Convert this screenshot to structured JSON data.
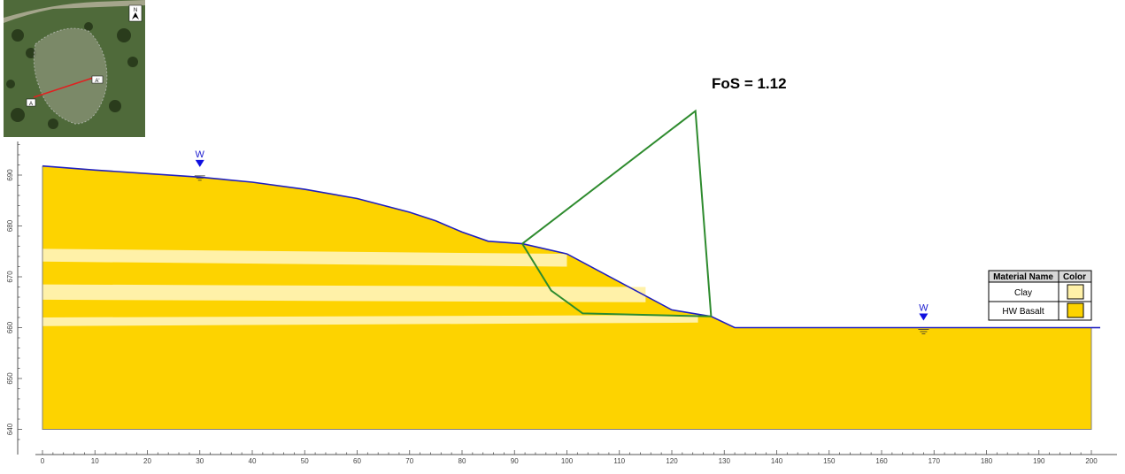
{
  "annotation": {
    "fos_label": "FoS = 1.12"
  },
  "water_markers": [
    {
      "label": "W",
      "x": 30,
      "y": 690.2
    },
    {
      "label": "W",
      "x": 168,
      "y": 660
    }
  ],
  "legend": {
    "headers": [
      "Material Name",
      "Color"
    ],
    "rows": [
      {
        "name": "Clay",
        "color": "#fff1a8"
      },
      {
        "name": "HW Basalt",
        "color": "#fdd300"
      }
    ]
  },
  "inset_map": {
    "labels": [
      "A",
      "A'"
    ],
    "north_label": "N"
  },
  "colors": {
    "basalt": "#fdd300",
    "clay": "#fff1a8",
    "ground_line": "#1f1fbf",
    "slip_surface": "#2e8b2e",
    "water": "#1010e0"
  },
  "chart_data": {
    "type": "diagram",
    "x_axis": {
      "ticks": [
        0,
        10,
        20,
        30,
        40,
        50,
        60,
        70,
        80,
        90,
        100,
        110,
        120,
        130,
        140,
        150,
        160,
        170,
        180,
        190,
        200
      ]
    },
    "y_axis": {
      "ticks": [
        640,
        650,
        660,
        670,
        680,
        690
      ]
    },
    "ground_surface": [
      [
        0,
        691.8
      ],
      [
        10,
        691
      ],
      [
        20,
        690.3
      ],
      [
        30,
        689.6
      ],
      [
        40,
        688.6
      ],
      [
        50,
        687.2
      ],
      [
        60,
        685.4
      ],
      [
        70,
        682.7
      ],
      [
        75,
        681
      ],
      [
        80,
        678.8
      ],
      [
        85,
        677
      ],
      [
        91.5,
        676.5
      ],
      [
        100,
        674.5
      ],
      [
        110,
        669
      ],
      [
        120,
        663.5
      ],
      [
        127.5,
        662.2
      ],
      [
        132,
        660
      ],
      [
        200,
        660
      ]
    ],
    "model_bottom": 640,
    "model_left": 0,
    "model_right": 200,
    "clay_layers": [
      {
        "top": [
          [
            0,
            675.5
          ],
          [
            100,
            674.5
          ]
        ],
        "bottom": [
          [
            0,
            673
          ],
          [
            100,
            672
          ]
        ]
      },
      {
        "top": [
          [
            0,
            668.5
          ],
          [
            115,
            668
          ]
        ],
        "bottom": [
          [
            0,
            665.5
          ],
          [
            115,
            665
          ]
        ]
      },
      {
        "top": [
          [
            0,
            662
          ],
          [
            125,
            662.5
          ]
        ],
        "bottom": [
          [
            0,
            660.3
          ],
          [
            125,
            661
          ]
        ]
      }
    ],
    "slip_surface": [
      [
        91.5,
        676.5
      ],
      [
        97,
        667.3
      ],
      [
        103,
        662.8
      ],
      [
        127.5,
        662.2
      ]
    ],
    "fos_wedge": [
      [
        91.5,
        676.5
      ],
      [
        124.5,
        702.6
      ],
      [
        127.5,
        662.2
      ]
    ],
    "factor_of_safety": 1.12
  }
}
